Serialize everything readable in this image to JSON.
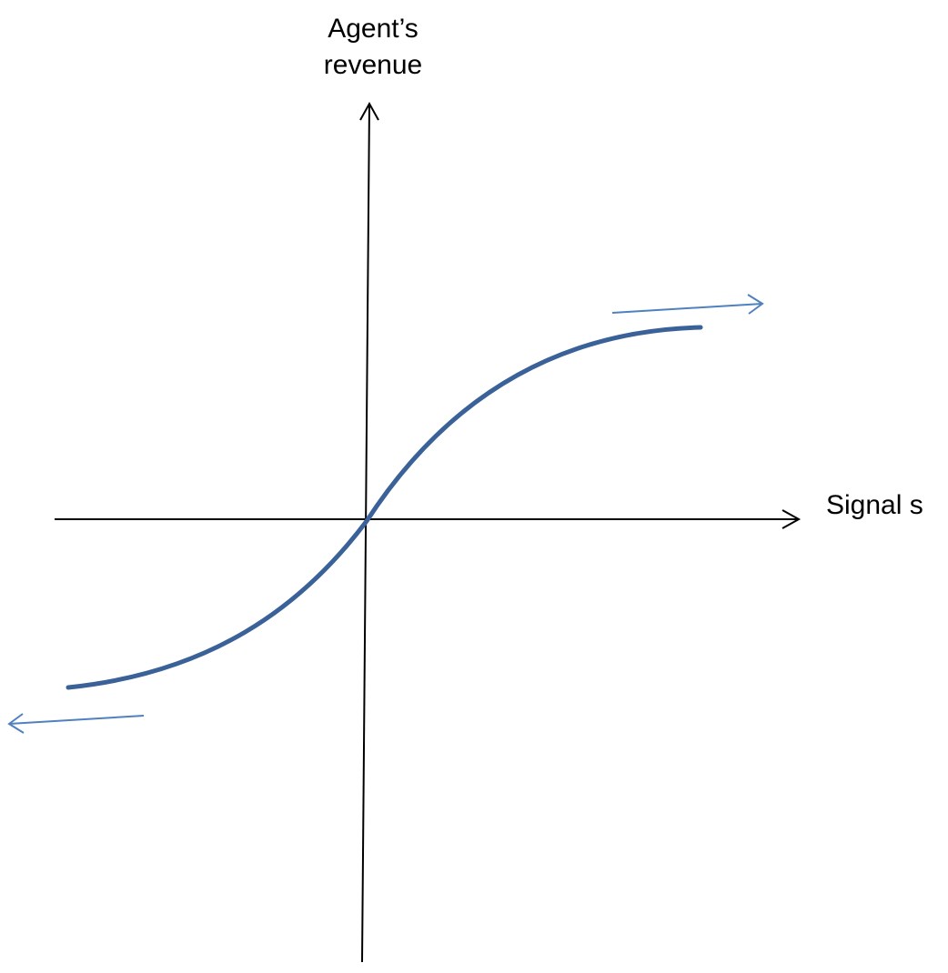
{
  "diagram": {
    "y_axis_label_line1": "Agent’s",
    "y_axis_label_line2": "revenue",
    "x_axis_label": "Signal s"
  },
  "colors": {
    "axis": "#000000",
    "curve": "#3a6298",
    "direction_arrow": "#4f81bd"
  }
}
